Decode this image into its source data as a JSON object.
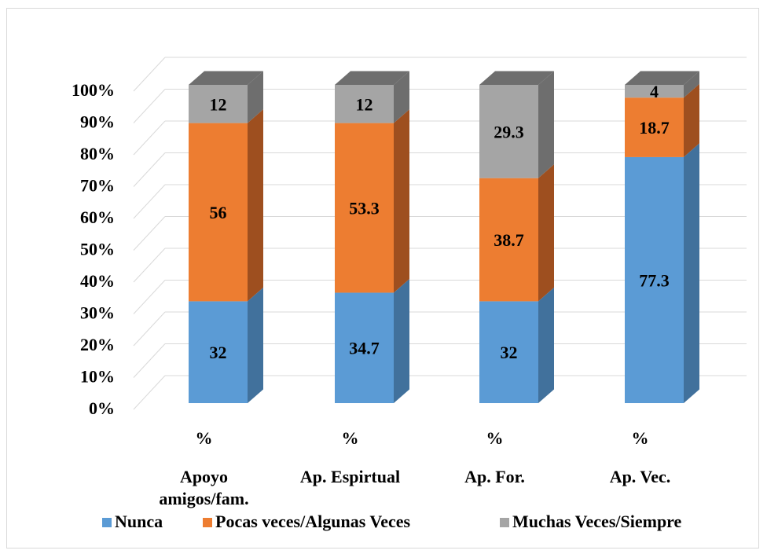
{
  "chart_data": {
    "type": "bar",
    "stacked": true,
    "three_d": true,
    "categories": [
      "Apoyo amigos/fam.",
      "Ap. Espirtual",
      "Ap. For.",
      "Ap. Vec."
    ],
    "category_lines": [
      [
        "Apoyo",
        "amigos/fam."
      ],
      [
        "Ap. Espirtual"
      ],
      [
        "Ap. For."
      ],
      [
        "Ap. Vec."
      ]
    ],
    "sublabel": "%",
    "series": [
      {
        "name": "Nunca",
        "values": [
          32,
          34.7,
          32,
          77.3
        ],
        "labels": [
          "32",
          "34.7",
          "32",
          "77.3"
        ],
        "color": "#5b9bd5",
        "side_color": "#41719c"
      },
      {
        "name": "Pocas veces/Algunas Veces",
        "values": [
          56,
          53.3,
          38.7,
          18.7
        ],
        "labels": [
          "56",
          "53.3",
          "38.7",
          "18.7"
        ],
        "color": "#ed7d31",
        "side_color": "#9e4f1f"
      },
      {
        "name": "Muchas Veces/Siempre",
        "values": [
          12,
          12,
          29.3,
          4
        ],
        "labels": [
          "12",
          "12",
          "29.3",
          "4"
        ],
        "color": "#a5a5a5",
        "side_color": "#6e6e6e"
      }
    ],
    "ylim": [
      0,
      100
    ],
    "yticks": [
      "0%",
      "10%",
      "20%",
      "30%",
      "40%",
      "50%",
      "60%",
      "70%",
      "80%",
      "90%",
      "100%"
    ],
    "grid": true,
    "legend": "bottom"
  }
}
